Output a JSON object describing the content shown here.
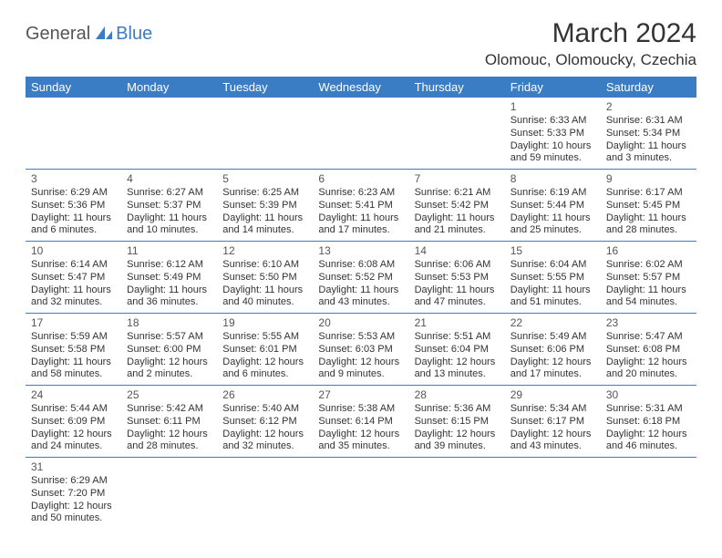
{
  "logo": {
    "general": "General",
    "blue": "Blue"
  },
  "title": "March 2024",
  "location": "Olomouc, Olomoucky, Czechia",
  "header_bg": "#3b7dc4",
  "header_text_color": "#ffffff",
  "cell_border_color": "#3b7dc4",
  "day_headers": [
    "Sunday",
    "Monday",
    "Tuesday",
    "Wednesday",
    "Thursday",
    "Friday",
    "Saturday"
  ],
  "weeks": [
    [
      null,
      null,
      null,
      null,
      null,
      {
        "n": "1",
        "sr": "Sunrise: 6:33 AM",
        "ss": "Sunset: 5:33 PM",
        "dl1": "Daylight: 10 hours",
        "dl2": "and 59 minutes."
      },
      {
        "n": "2",
        "sr": "Sunrise: 6:31 AM",
        "ss": "Sunset: 5:34 PM",
        "dl1": "Daylight: 11 hours",
        "dl2": "and 3 minutes."
      }
    ],
    [
      {
        "n": "3",
        "sr": "Sunrise: 6:29 AM",
        "ss": "Sunset: 5:36 PM",
        "dl1": "Daylight: 11 hours",
        "dl2": "and 6 minutes."
      },
      {
        "n": "4",
        "sr": "Sunrise: 6:27 AM",
        "ss": "Sunset: 5:37 PM",
        "dl1": "Daylight: 11 hours",
        "dl2": "and 10 minutes."
      },
      {
        "n": "5",
        "sr": "Sunrise: 6:25 AM",
        "ss": "Sunset: 5:39 PM",
        "dl1": "Daylight: 11 hours",
        "dl2": "and 14 minutes."
      },
      {
        "n": "6",
        "sr": "Sunrise: 6:23 AM",
        "ss": "Sunset: 5:41 PM",
        "dl1": "Daylight: 11 hours",
        "dl2": "and 17 minutes."
      },
      {
        "n": "7",
        "sr": "Sunrise: 6:21 AM",
        "ss": "Sunset: 5:42 PM",
        "dl1": "Daylight: 11 hours",
        "dl2": "and 21 minutes."
      },
      {
        "n": "8",
        "sr": "Sunrise: 6:19 AM",
        "ss": "Sunset: 5:44 PM",
        "dl1": "Daylight: 11 hours",
        "dl2": "and 25 minutes."
      },
      {
        "n": "9",
        "sr": "Sunrise: 6:17 AM",
        "ss": "Sunset: 5:45 PM",
        "dl1": "Daylight: 11 hours",
        "dl2": "and 28 minutes."
      }
    ],
    [
      {
        "n": "10",
        "sr": "Sunrise: 6:14 AM",
        "ss": "Sunset: 5:47 PM",
        "dl1": "Daylight: 11 hours",
        "dl2": "and 32 minutes."
      },
      {
        "n": "11",
        "sr": "Sunrise: 6:12 AM",
        "ss": "Sunset: 5:49 PM",
        "dl1": "Daylight: 11 hours",
        "dl2": "and 36 minutes."
      },
      {
        "n": "12",
        "sr": "Sunrise: 6:10 AM",
        "ss": "Sunset: 5:50 PM",
        "dl1": "Daylight: 11 hours",
        "dl2": "and 40 minutes."
      },
      {
        "n": "13",
        "sr": "Sunrise: 6:08 AM",
        "ss": "Sunset: 5:52 PM",
        "dl1": "Daylight: 11 hours",
        "dl2": "and 43 minutes."
      },
      {
        "n": "14",
        "sr": "Sunrise: 6:06 AM",
        "ss": "Sunset: 5:53 PM",
        "dl1": "Daylight: 11 hours",
        "dl2": "and 47 minutes."
      },
      {
        "n": "15",
        "sr": "Sunrise: 6:04 AM",
        "ss": "Sunset: 5:55 PM",
        "dl1": "Daylight: 11 hours",
        "dl2": "and 51 minutes."
      },
      {
        "n": "16",
        "sr": "Sunrise: 6:02 AM",
        "ss": "Sunset: 5:57 PM",
        "dl1": "Daylight: 11 hours",
        "dl2": "and 54 minutes."
      }
    ],
    [
      {
        "n": "17",
        "sr": "Sunrise: 5:59 AM",
        "ss": "Sunset: 5:58 PM",
        "dl1": "Daylight: 11 hours",
        "dl2": "and 58 minutes."
      },
      {
        "n": "18",
        "sr": "Sunrise: 5:57 AM",
        "ss": "Sunset: 6:00 PM",
        "dl1": "Daylight: 12 hours",
        "dl2": "and 2 minutes."
      },
      {
        "n": "19",
        "sr": "Sunrise: 5:55 AM",
        "ss": "Sunset: 6:01 PM",
        "dl1": "Daylight: 12 hours",
        "dl2": "and 6 minutes."
      },
      {
        "n": "20",
        "sr": "Sunrise: 5:53 AM",
        "ss": "Sunset: 6:03 PM",
        "dl1": "Daylight: 12 hours",
        "dl2": "and 9 minutes."
      },
      {
        "n": "21",
        "sr": "Sunrise: 5:51 AM",
        "ss": "Sunset: 6:04 PM",
        "dl1": "Daylight: 12 hours",
        "dl2": "and 13 minutes."
      },
      {
        "n": "22",
        "sr": "Sunrise: 5:49 AM",
        "ss": "Sunset: 6:06 PM",
        "dl1": "Daylight: 12 hours",
        "dl2": "and 17 minutes."
      },
      {
        "n": "23",
        "sr": "Sunrise: 5:47 AM",
        "ss": "Sunset: 6:08 PM",
        "dl1": "Daylight: 12 hours",
        "dl2": "and 20 minutes."
      }
    ],
    [
      {
        "n": "24",
        "sr": "Sunrise: 5:44 AM",
        "ss": "Sunset: 6:09 PM",
        "dl1": "Daylight: 12 hours",
        "dl2": "and 24 minutes."
      },
      {
        "n": "25",
        "sr": "Sunrise: 5:42 AM",
        "ss": "Sunset: 6:11 PM",
        "dl1": "Daylight: 12 hours",
        "dl2": "and 28 minutes."
      },
      {
        "n": "26",
        "sr": "Sunrise: 5:40 AM",
        "ss": "Sunset: 6:12 PM",
        "dl1": "Daylight: 12 hours",
        "dl2": "and 32 minutes."
      },
      {
        "n": "27",
        "sr": "Sunrise: 5:38 AM",
        "ss": "Sunset: 6:14 PM",
        "dl1": "Daylight: 12 hours",
        "dl2": "and 35 minutes."
      },
      {
        "n": "28",
        "sr": "Sunrise: 5:36 AM",
        "ss": "Sunset: 6:15 PM",
        "dl1": "Daylight: 12 hours",
        "dl2": "and 39 minutes."
      },
      {
        "n": "29",
        "sr": "Sunrise: 5:34 AM",
        "ss": "Sunset: 6:17 PM",
        "dl1": "Daylight: 12 hours",
        "dl2": "and 43 minutes."
      },
      {
        "n": "30",
        "sr": "Sunrise: 5:31 AM",
        "ss": "Sunset: 6:18 PM",
        "dl1": "Daylight: 12 hours",
        "dl2": "and 46 minutes."
      }
    ],
    [
      {
        "n": "31",
        "sr": "Sunrise: 6:29 AM",
        "ss": "Sunset: 7:20 PM",
        "dl1": "Daylight: 12 hours",
        "dl2": "and 50 minutes."
      },
      null,
      null,
      null,
      null,
      null,
      null
    ]
  ]
}
